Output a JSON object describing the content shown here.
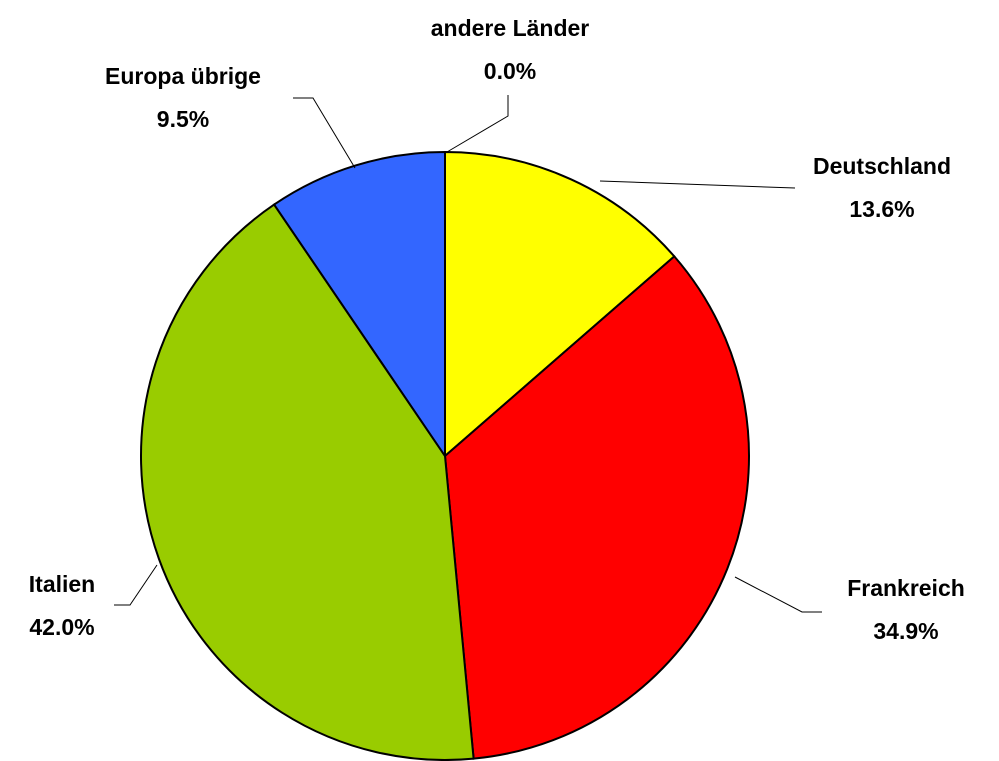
{
  "chart_data": {
    "type": "pie",
    "categories": [
      "Deutschland",
      "Frankreich",
      "Italien",
      "Europa übrige",
      "andere Länder"
    ],
    "values": [
      13.6,
      34.9,
      42.0,
      9.5,
      0.0
    ],
    "value_labels": [
      "13.6%",
      "34.9%",
      "42.0%",
      "9.5%",
      "0.0%"
    ],
    "colors": [
      "#ffff00",
      "#ff0000",
      "#99cc00",
      "#3366ff",
      "#00ccff"
    ]
  }
}
